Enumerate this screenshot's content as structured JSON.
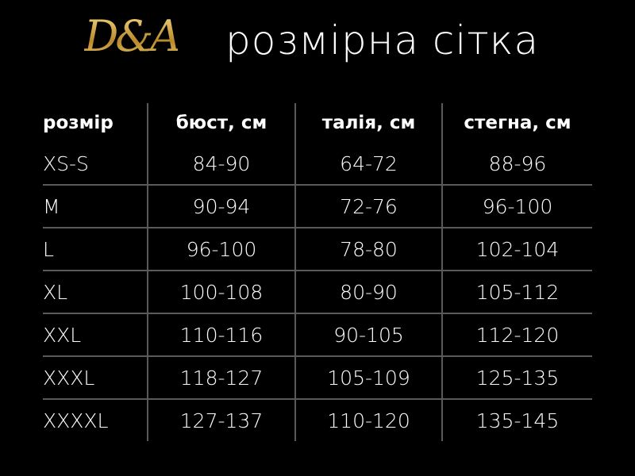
{
  "logo": {
    "text": "D&A",
    "color": "#c9a23a"
  },
  "title": "розмірна сітка",
  "table": {
    "headers": [
      "розмір",
      "бюст, см",
      "талія, см",
      "стегна, см"
    ],
    "rows": [
      [
        "XS-S",
        "84-90",
        "64-72",
        "88-96"
      ],
      [
        "M",
        "90-94",
        "72-76",
        "96-100"
      ],
      [
        "L",
        "96-100",
        "78-80",
        "102-104"
      ],
      [
        "XL",
        "100-108",
        "80-90",
        "105-112"
      ],
      [
        "XXL",
        "110-116",
        "90-105",
        "112-120"
      ],
      [
        "XXXL",
        "118-127",
        "105-109",
        "125-135"
      ],
      [
        "XXXXL",
        "127-137",
        "110-120",
        "135-145"
      ]
    ]
  }
}
